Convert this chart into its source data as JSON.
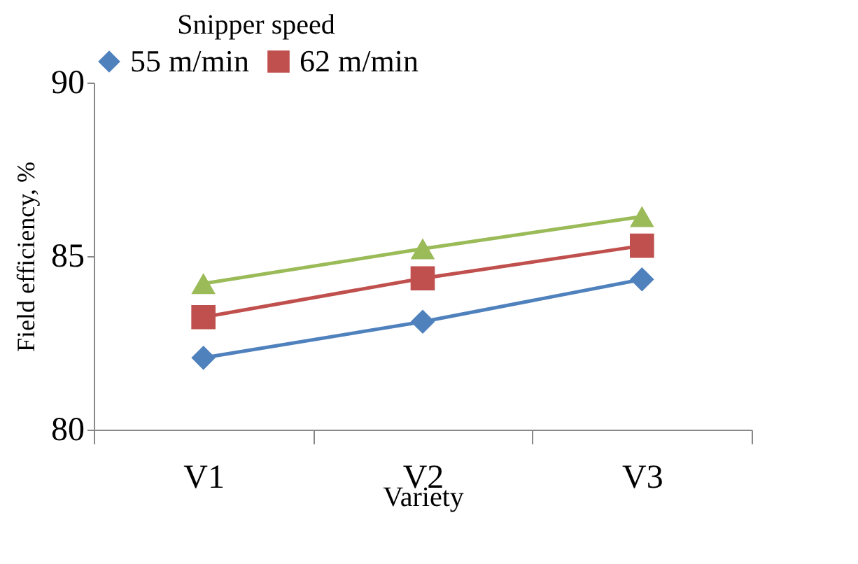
{
  "chart_data": {
    "type": "line",
    "xlabel": "Variety",
    "ylabel": "Field efficiency, %",
    "legend_title": "Snipper speed",
    "legend": "top",
    "categories": [
      "V1",
      "V2",
      "V3"
    ],
    "series": [
      {
        "name": "55 m/min",
        "color": "#4f81bd",
        "marker": "diamond",
        "values": [
          82.07,
          83.11,
          84.33
        ]
      },
      {
        "name": "62 m/min",
        "color": "#c0504d",
        "marker": "square",
        "values": [
          83.24,
          84.36,
          85.3
        ]
      },
      {
        "color": "#9bbb59",
        "marker": "triangle",
        "values": [
          84.21,
          85.21,
          86.14
        ]
      }
    ],
    "ylim": [
      80,
      90
    ],
    "yticks": [
      80,
      85,
      90
    ],
    "grid": false
  }
}
